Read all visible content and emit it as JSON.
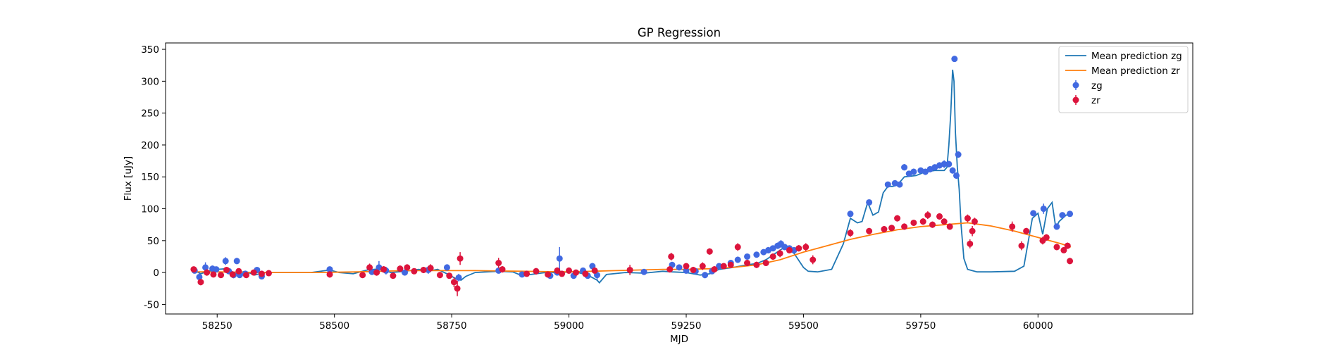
{
  "chart_data": {
    "type": "scatter",
    "title": "GP Regression",
    "xlabel": "MJD",
    "ylabel": "Flux [uJy]",
    "xlim": [
      58140,
      60330
    ],
    "ylim": [
      -65,
      360
    ],
    "xticks": [
      58250,
      58500,
      58750,
      59000,
      59250,
      59500,
      59750,
      60000
    ],
    "yticks": [
      -50,
      0,
      50,
      100,
      150,
      200,
      250,
      300,
      350
    ],
    "grid": false,
    "legend_position": "top-right",
    "legend": [
      {
        "label": "Mean prediction zg",
        "kind": "line",
        "color": "#1f77b4"
      },
      {
        "label": "Mean prediction zr",
        "kind": "line",
        "color": "#ff7f0e"
      },
      {
        "label": "zg",
        "kind": "errorbar",
        "color": "#4169e1"
      },
      {
        "label": "zr",
        "kind": "errorbar",
        "color": "#dc143c"
      }
    ],
    "series": [
      {
        "name": "Mean prediction zg",
        "kind": "line",
        "color": "#1f77b4",
        "x": [
          58200,
          58215,
          58230,
          58250,
          58270,
          58290,
          58310,
          58330,
          58350,
          58400,
          58450,
          58490,
          58510,
          58540,
          58570,
          58600,
          58620,
          58650,
          58680,
          58700,
          58720,
          58740,
          58760,
          58770,
          58780,
          58800,
          58850,
          58880,
          58900,
          58930,
          58960,
          58980,
          59000,
          59020,
          59040,
          59060,
          59065,
          59080,
          59120,
          59160,
          59200,
          59220,
          59250,
          59280,
          59300,
          59320,
          59350,
          59380,
          59400,
          59420,
          59440,
          59460,
          59480,
          59500,
          59510,
          59530,
          59560,
          59585,
          59600,
          59615,
          59625,
          59637,
          59648,
          59660,
          59670,
          59680,
          59690,
          59700,
          59715,
          59740,
          59760,
          59780,
          59800,
          59806,
          59810,
          59814,
          59818,
          59821,
          59824,
          59828,
          59832,
          59836,
          59842,
          59850,
          59870,
          59900,
          59950,
          59970,
          59988,
          60000,
          60010,
          60020,
          60030,
          60038,
          60045,
          60060,
          60070
        ],
        "y": [
          4,
          -2,
          2,
          5,
          6,
          -2,
          2,
          -4,
          0,
          0,
          0,
          4,
          0,
          -2,
          4,
          6,
          0,
          2,
          5,
          2,
          5,
          -2,
          -10,
          -12,
          -6,
          0,
          2,
          1,
          -5,
          -2,
          1,
          -2,
          2,
          0,
          -4,
          -12,
          -16,
          -3,
          0,
          -1,
          2,
          1,
          0,
          -4,
          -2,
          5,
          8,
          12,
          14,
          20,
          30,
          40,
          30,
          8,
          2,
          1,
          5,
          45,
          85,
          78,
          80,
          110,
          90,
          95,
          125,
          135,
          135,
          137,
          150,
          152,
          158,
          160,
          160,
          165,
          200,
          250,
          318,
          300,
          220,
          165,
          130,
          75,
          22,
          5,
          1,
          1,
          2,
          10,
          85,
          93,
          60,
          100,
          110,
          70,
          80,
          90,
          92
        ]
      },
      {
        "name": "Mean prediction zr",
        "kind": "line",
        "color": "#ff7f0e",
        "x": [
          58200,
          58250,
          58300,
          58350,
          58400,
          58450,
          58500,
          58550,
          58600,
          58650,
          58700,
          58750,
          58800,
          58850,
          58900,
          58950,
          59000,
          59050,
          59100,
          59150,
          59200,
          59250,
          59300,
          59350,
          59400,
          59450,
          59500,
          59550,
          59600,
          59650,
          59700,
          59750,
          59800,
          59850,
          59900,
          59950,
          60000,
          60050,
          60070
        ],
        "y": [
          1,
          1,
          0.5,
          0,
          0,
          0,
          0.5,
          1,
          2,
          3,
          3,
          3,
          3,
          2.5,
          2,
          1.5,
          1,
          2,
          3,
          4,
          5,
          5,
          6,
          8,
          12,
          20,
          32,
          42,
          52,
          60,
          67,
          72,
          75,
          78,
          73,
          65,
          55,
          45,
          40
        ]
      },
      {
        "name": "zg",
        "kind": "errorbar",
        "color": "#4169e1",
        "x": [
          58202,
          58212,
          58225,
          58240,
          58248,
          58268,
          58275,
          58285,
          58292,
          58298,
          58310,
          58335,
          58345,
          58490,
          58580,
          58595,
          58610,
          58650,
          58700,
          58740,
          58765,
          58850,
          58900,
          58960,
          58975,
          58980,
          59010,
          59030,
          59040,
          59050,
          59060,
          59160,
          59220,
          59235,
          59250,
          59270,
          59290,
          59305,
          59320,
          59345,
          59360,
          59380,
          59400,
          59415,
          59425,
          59435,
          59445,
          59452,
          59460,
          59470,
          59480,
          59600,
          59640,
          59680,
          59695,
          59705,
          59715,
          59725,
          59735,
          59750,
          59760,
          59770,
          59780,
          59790,
          59800,
          59810,
          59818,
          59822,
          59826,
          59830,
          59990,
          60012,
          60040,
          60052,
          60068
        ],
        "y": [
          3,
          -7,
          8,
          6,
          5,
          18,
          2,
          -4,
          18,
          -4,
          -2,
          4,
          -6,
          5,
          1,
          8,
          3,
          0,
          4,
          8,
          -8,
          3,
          -3,
          -5,
          0,
          22,
          -5,
          3,
          -5,
          10,
          -4,
          1,
          12,
          8,
          3,
          2,
          -4,
          2,
          10,
          15,
          20,
          25,
          28,
          32,
          35,
          38,
          42,
          45,
          40,
          38,
          35,
          92,
          110,
          138,
          140,
          138,
          165,
          155,
          158,
          160,
          158,
          162,
          165,
          168,
          170,
          170,
          160,
          335,
          152,
          185,
          93,
          100,
          72,
          90,
          92
        ],
        "err": [
          3,
          8,
          8,
          5,
          4,
          6,
          3,
          5,
          5,
          4,
          3,
          4,
          4,
          4,
          3,
          10,
          6,
          4,
          6,
          5,
          6,
          4,
          4,
          5,
          4,
          18,
          5,
          4,
          3,
          5,
          8,
          3,
          4,
          4,
          3,
          4,
          5,
          4,
          4,
          4,
          5,
          4,
          4,
          4,
          5,
          4,
          5,
          6,
          5,
          4,
          4,
          5,
          4,
          4,
          4,
          4,
          5,
          4,
          5,
          4,
          5,
          4,
          4,
          5,
          6,
          5,
          5,
          4,
          5,
          5,
          4,
          8,
          5,
          4,
          4
        ]
      },
      {
        "name": "zr",
        "kind": "errorbar",
        "color": "#dc143c",
        "x": [
          58200,
          58215,
          58228,
          58242,
          58258,
          58270,
          58283,
          58296,
          58312,
          58328,
          58345,
          58360,
          58490,
          58560,
          58575,
          58590,
          58605,
          58625,
          58640,
          58655,
          58670,
          58690,
          58705,
          58725,
          58745,
          58755,
          58762,
          58768,
          58850,
          58858,
          58910,
          58930,
          58955,
          58975,
          58985,
          59000,
          59015,
          59035,
          59055,
          59130,
          59215,
          59218,
          59250,
          59265,
          59285,
          59300,
          59310,
          59330,
          59345,
          59360,
          59380,
          59400,
          59420,
          59435,
          59450,
          59470,
          59490,
          59505,
          59520,
          59600,
          59640,
          59672,
          59688,
          59700,
          59715,
          59735,
          59755,
          59765,
          59775,
          59790,
          59800,
          59812,
          59850,
          59855,
          59860,
          59865,
          59945,
          59965,
          59975,
          60010,
          60018,
          60040,
          60055,
          60063,
          60068
        ],
        "y": [
          5,
          -15,
          0,
          -3,
          -4,
          4,
          -3,
          2,
          -4,
          0,
          -2,
          -1,
          -3,
          -4,
          8,
          0,
          5,
          -5,
          6,
          8,
          2,
          4,
          7,
          -4,
          -5,
          -15,
          -25,
          22,
          15,
          5,
          -2,
          2,
          -3,
          3,
          -2,
          3,
          0,
          -2,
          3,
          4,
          5,
          25,
          10,
          4,
          10,
          33,
          5,
          10,
          12,
          40,
          15,
          12,
          15,
          25,
          30,
          35,
          38,
          40,
          20,
          62,
          65,
          68,
          70,
          85,
          72,
          78,
          80,
          90,
          75,
          88,
          80,
          72,
          85,
          45,
          65,
          80,
          72,
          42,
          65,
          50,
          55,
          40,
          35,
          42,
          18
        ],
        "err": [
          4,
          5,
          5,
          4,
          3,
          4,
          5,
          4,
          4,
          3,
          4,
          3,
          5,
          4,
          6,
          5,
          5,
          4,
          5,
          5,
          4,
          5,
          6,
          5,
          4,
          8,
          12,
          10,
          8,
          5,
          4,
          5,
          4,
          5,
          4,
          5,
          4,
          4,
          4,
          8,
          5,
          6,
          4,
          5,
          6,
          5,
          5,
          4,
          4,
          6,
          5,
          5,
          4,
          5,
          6,
          5,
          5,
          6,
          7,
          6,
          5,
          5,
          4,
          5,
          5,
          4,
          5,
          6,
          5,
          5,
          4,
          5,
          6,
          7,
          8,
          6,
          8,
          7,
          5,
          6,
          5,
          5,
          4,
          5,
          5
        ]
      }
    ]
  }
}
